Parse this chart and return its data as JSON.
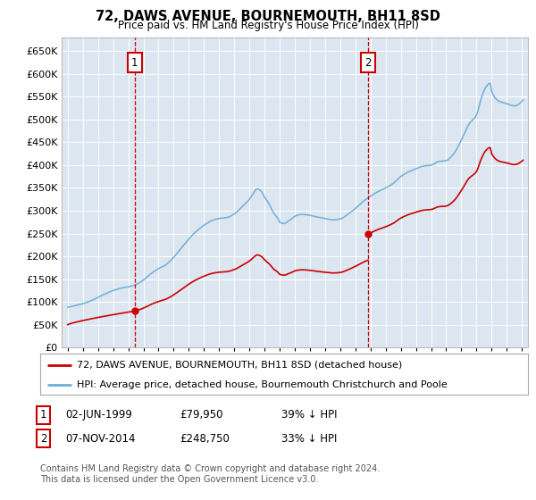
{
  "title": "72, DAWS AVENUE, BOURNEMOUTH, BH11 8SD",
  "subtitle": "Price paid vs. HM Land Registry's House Price Index (HPI)",
  "legend_line1": "72, DAWS AVENUE, BOURNEMOUTH, BH11 8SD (detached house)",
  "legend_line2": "HPI: Average price, detached house, Bournemouth Christchurch and Poole",
  "footnote1": "Contains HM Land Registry data © Crown copyright and database right 2024.",
  "footnote2": "This data is licensed under the Open Government Licence v3.0.",
  "marker1_label": "1",
  "marker1_date": "02-JUN-1999",
  "marker1_price": "£79,950",
  "marker1_hpi": "39% ↓ HPI",
  "marker1_year": 1999.42,
  "marker1_value": 79950,
  "marker2_label": "2",
  "marker2_date": "07-NOV-2014",
  "marker2_price": "£248,750",
  "marker2_hpi": "33% ↓ HPI",
  "marker2_year": 2014.85,
  "marker2_value": 248750,
  "hpi_color": "#6baed6",
  "price_color": "#cc0000",
  "marker_box_color": "#cc0000",
  "plot_bg_color": "#dce6f1",
  "grid_color": "#ffffff",
  "ylim_max": 680000,
  "xlim_start": 1994.6,
  "xlim_end": 2025.4,
  "yticks": [
    0,
    50000,
    100000,
    150000,
    200000,
    250000,
    300000,
    350000,
    400000,
    450000,
    500000,
    550000,
    600000,
    650000
  ],
  "xticks": [
    1995,
    1996,
    1997,
    1998,
    1999,
    2000,
    2001,
    2002,
    2003,
    2004,
    2005,
    2006,
    2007,
    2008,
    2009,
    2010,
    2011,
    2012,
    2013,
    2014,
    2015,
    2016,
    2017,
    2018,
    2019,
    2020,
    2021,
    2022,
    2023,
    2024,
    2025
  ]
}
